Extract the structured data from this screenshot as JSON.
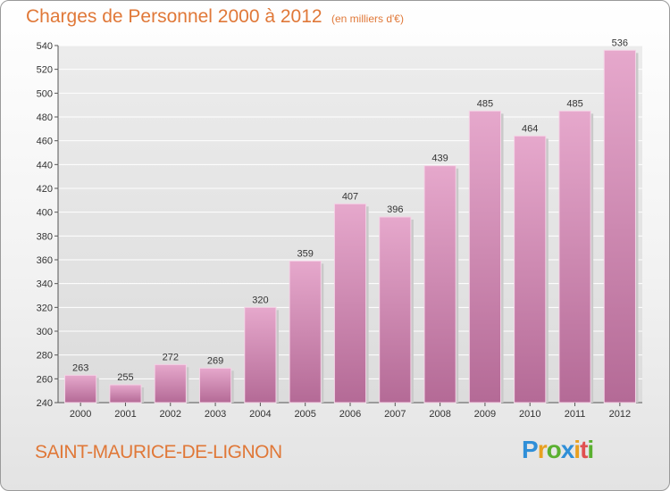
{
  "chart_data": {
    "type": "bar",
    "title": "Charges de Personnel 2000 à 2012",
    "subtitle": "(en milliers d'€)",
    "categories": [
      "2000",
      "2001",
      "2002",
      "2003",
      "2004",
      "2005",
      "2006",
      "2007",
      "2008",
      "2009",
      "2010",
      "2011",
      "2012"
    ],
    "values": [
      263,
      255,
      272,
      269,
      320,
      359,
      407,
      396,
      439,
      485,
      464,
      485,
      536
    ],
    "ylim": [
      240,
      540
    ],
    "yticks": [
      240,
      260,
      280,
      300,
      320,
      340,
      360,
      380,
      400,
      420,
      440,
      460,
      480,
      500,
      520,
      540
    ],
    "grid": true,
    "bar_color": "#d890b8"
  },
  "footer": {
    "commune": "SAINT-MAURICE-DE-LIGNON",
    "logo_letters": [
      {
        "ch": "P",
        "color": "#2f8fd8"
      },
      {
        "ch": "r",
        "color": "#e8a020"
      },
      {
        "ch": "o",
        "color": "#5ab030"
      },
      {
        "ch": "x",
        "color": "#2f8fd8"
      },
      {
        "ch": "i",
        "color": "#e8a020"
      },
      {
        "ch": "t",
        "color": "#e05050"
      },
      {
        "ch": "i",
        "color": "#5ab030"
      }
    ]
  }
}
